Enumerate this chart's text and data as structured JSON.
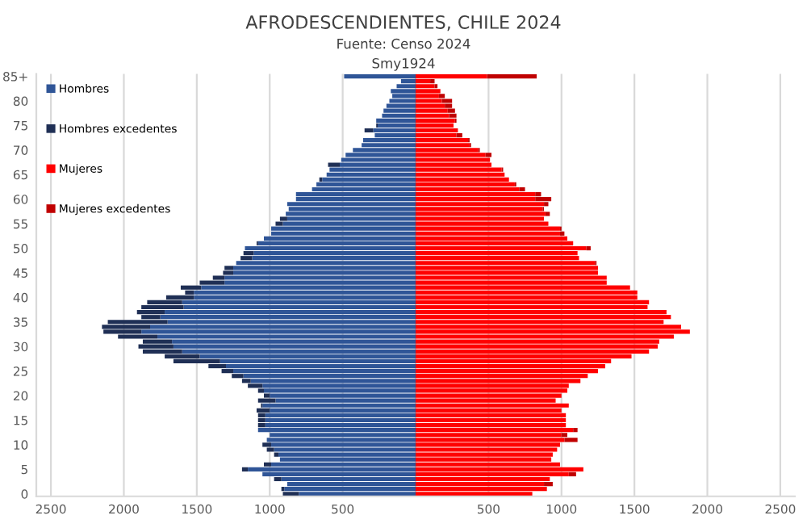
{
  "chart_data": {
    "type": "bar",
    "orientation": "horizontal",
    "stacked": true,
    "title": "AFRODESCENDIENTES, CHILE 2024",
    "subtitle": "Fuente: Censo 2024",
    "annotations": [
      "Smy1924"
    ],
    "categories": [
      "85+",
      null,
      null,
      null,
      null,
      "80",
      null,
      null,
      null,
      null,
      "75",
      null,
      null,
      null,
      null,
      "70",
      null,
      null,
      null,
      null,
      "65",
      null,
      null,
      null,
      null,
      "60",
      null,
      null,
      null,
      null,
      "55",
      null,
      null,
      null,
      null,
      "50",
      null,
      null,
      null,
      null,
      "45",
      null,
      null,
      null,
      null,
      "40",
      null,
      null,
      null,
      null,
      "35",
      null,
      null,
      null,
      null,
      "30",
      null,
      null,
      null,
      null,
      "25",
      null,
      null,
      null,
      null,
      "20",
      null,
      null,
      null,
      null,
      "15",
      null,
      null,
      null,
      null,
      "10",
      null,
      null,
      null,
      null,
      "5",
      null,
      null,
      null,
      null,
      "0"
    ],
    "series": [
      {
        "name": "Hombres",
        "color": "#2f5597",
        "values": [
          -490,
          -100,
          -130,
          -170,
          -160,
          -180,
          -200,
          -220,
          -230,
          -270,
          -260,
          -290,
          -280,
          -360,
          -370,
          -430,
          -480,
          -510,
          -520,
          -590,
          -610,
          -640,
          -680,
          -710,
          -820,
          -820,
          -880,
          -870,
          -890,
          -880,
          -910,
          -990,
          -990,
          -1040,
          -1080,
          -1170,
          -1110,
          -1120,
          -1230,
          -1250,
          -1250,
          -1310,
          -1310,
          -1470,
          -1520,
          -1520,
          -1600,
          -1590,
          -1720,
          -1750,
          -1700,
          -1820,
          -1880,
          -1770,
          -1670,
          -1660,
          -1600,
          -1480,
          -1340,
          -1300,
          -1250,
          -1180,
          -1130,
          -1050,
          -1040,
          -1000,
          -960,
          -1050,
          -1000,
          -1030,
          -1030,
          -1030,
          -1080,
          -1000,
          -1020,
          -990,
          -970,
          -940,
          -930,
          -990,
          -1150,
          -1050,
          -920,
          -880,
          -900,
          -800
        ]
      },
      {
        "name": "Hombres excedentes",
        "color": "#1f2f55",
        "values": [
          0,
          0,
          0,
          0,
          0,
          0,
          0,
          0,
          0,
          0,
          -10,
          -60,
          0,
          0,
          0,
          0,
          0,
          0,
          -80,
          0,
          0,
          -20,
          0,
          0,
          0,
          0,
          0,
          0,
          0,
          -50,
          -50,
          0,
          0,
          0,
          -10,
          0,
          -70,
          -80,
          0,
          -60,
          -70,
          -80,
          -170,
          -140,
          -60,
          -190,
          -240,
          -290,
          -190,
          -130,
          -410,
          -330,
          -260,
          -270,
          -200,
          -240,
          -270,
          -240,
          -320,
          -120,
          -80,
          -80,
          -60,
          -100,
          -40,
          -40,
          -120,
          -10,
          -90,
          -50,
          -50,
          -50,
          0,
          0,
          0,
          -60,
          -50,
          -30,
          0,
          -50,
          -40,
          0,
          -50,
          0,
          -20,
          -110
        ]
      },
      {
        "name": "Mujeres",
        "color": "#ff0000",
        "values": [
          490,
          100,
          130,
          170,
          160,
          180,
          200,
          220,
          230,
          270,
          260,
          290,
          280,
          360,
          370,
          430,
          480,
          510,
          520,
          590,
          610,
          640,
          680,
          710,
          820,
          820,
          880,
          870,
          890,
          880,
          910,
          990,
          990,
          1040,
          1080,
          1170,
          1110,
          1120,
          1230,
          1250,
          1250,
          1310,
          1310,
          1470,
          1520,
          1520,
          1600,
          1590,
          1720,
          1750,
          1700,
          1820,
          1880,
          1770,
          1670,
          1660,
          1600,
          1480,
          1340,
          1300,
          1250,
          1180,
          1130,
          1050,
          1040,
          1000,
          960,
          1050,
          1000,
          1030,
          1030,
          1030,
          1080,
          1000,
          1020,
          990,
          970,
          940,
          930,
          990,
          1150,
          1050,
          920,
          880,
          900,
          800
        ]
      },
      {
        "name": "Mujeres excedentes",
        "color": "#c00000",
        "values": [
          340,
          30,
          20,
          0,
          40,
          70,
          50,
          50,
          50,
          10,
          0,
          0,
          40,
          10,
          10,
          10,
          40,
          0,
          0,
          10,
          0,
          0,
          10,
          40,
          40,
          110,
          30,
          10,
          30,
          0,
          0,
          10,
          30,
          0,
          0,
          30,
          0,
          0,
          10,
          0,
          0,
          0,
          0,
          0,
          0,
          0,
          0,
          0,
          0,
          0,
          0,
          0,
          0,
          0,
          0,
          0,
          0,
          0,
          0,
          0,
          0,
          0,
          0,
          0,
          0,
          0,
          0,
          0,
          0,
          0,
          0,
          0,
          30,
          40,
          90,
          0,
          0,
          0,
          0,
          0,
          0,
          50,
          0,
          60,
          0,
          0
        ]
      }
    ],
    "xlim": [
      -2600,
      2600
    ],
    "xticks": [
      {
        "value": -2500,
        "label": "2500"
      },
      {
        "value": -2000,
        "label": "2000"
      },
      {
        "value": -1500,
        "label": "1500"
      },
      {
        "value": -1000,
        "label": "1000"
      },
      {
        "value": -500,
        "label": "500"
      },
      {
        "value": 0,
        "label": null
      },
      500,
      1000,
      1500,
      2000,
      2500
    ],
    "grid": "x",
    "legend": "top left"
  }
}
